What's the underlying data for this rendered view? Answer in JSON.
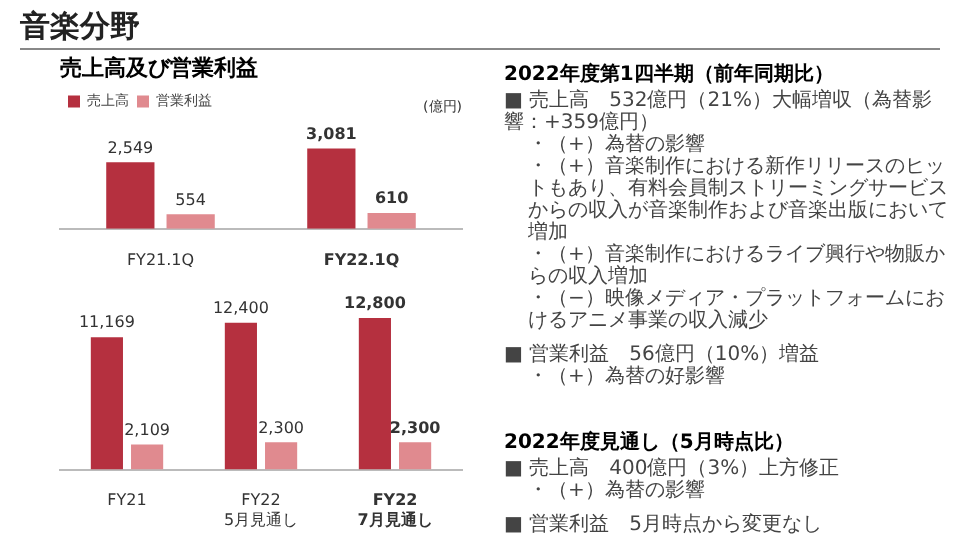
{
  "chart_data": [
    {
      "type": "other",
      "title": "音楽分野",
      "annotations": [
        "2022年度第1四半期（前年同期比）",
        "■ 売上高　532億円（21%）大幅増収（為替影響：+359億円）",
        "・（+）為替の影響",
        "・（+）音楽制作における新作リリースのヒットもあり、有料会員制ストリーミングサービスからの収入が音楽制作および音楽出版において増加",
        "・（+）音楽制作におけるライブ興行や物販からの収入増加",
        "・（−）映像メディア・プラットフォームにおけるアニメ事業の収入減少",
        "■ 営業利益　56億円（10%）増益",
        "・（+）為替の好影響",
        "2022年度見通し（5月時点比）",
        "■ 売上高　400億円（3%）上方修正",
        "・（+）為替の影響",
        "■ 営業利益　5月時点から変更なし"
      ]
    },
    {
      "type": "bar",
      "title": "売上高及び営業利益",
      "annotations": [
        "(億円)"
      ],
      "categories": [
        "FY21.1Q",
        "FY22.1Q"
      ],
      "legend": "top left",
      "series": [
        {
          "name": "売上高",
          "color": "#b5303f",
          "values": [
            2549,
            3081
          ],
          "value_labels": [
            "2,549",
            "3,081"
          ]
        },
        {
          "name": "営業利益",
          "color": "#e08a8f",
          "values": [
            554,
            610
          ],
          "value_labels": [
            "554",
            "610"
          ]
        }
      ]
    },
    {
      "type": "bar",
      "categories": [
        "FY21",
        "FY22\n5月見通し",
        "FY22\n7月見通し"
      ],
      "series": [
        {
          "color": "#b5303f",
          "values": [
            11169,
            12400,
            12800
          ],
          "value_labels": [
            "11,169",
            "12,400",
            "12,800"
          ]
        },
        {
          "color": "#e08a8f",
          "values": [
            2109,
            2300,
            2300
          ],
          "value_labels": [
            "2,109",
            "2,300",
            "2,300"
          ]
        }
      ]
    }
  ]
}
